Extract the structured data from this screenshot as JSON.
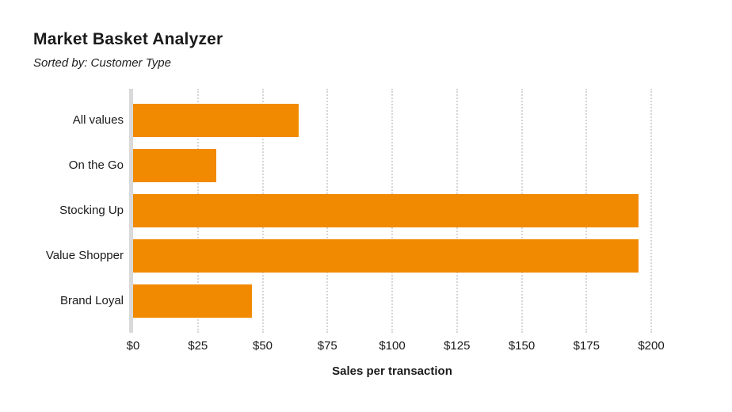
{
  "header": {
    "title": "Market Basket Analyzer",
    "subtitle": "Sorted by: Customer Type"
  },
  "chart_data": {
    "type": "bar",
    "orientation": "horizontal",
    "title": "Market Basket Analyzer",
    "subtitle": "Sorted by: Customer Type",
    "categories": [
      "All values",
      "On the Go",
      "Stocking Up",
      "Value Shopper",
      "Brand Loyal"
    ],
    "values": [
      64,
      32,
      195,
      195,
      46
    ],
    "xlabel": "Sales per transaction",
    "ylabel": "",
    "xlim": [
      0,
      200
    ],
    "x_tick_values": [
      0,
      25,
      50,
      75,
      100,
      125,
      150,
      175,
      200
    ],
    "x_tick_labels": [
      "$0",
      "$25",
      "$50",
      "$75",
      "$100",
      "$125",
      "$150",
      "$175",
      "$200"
    ],
    "bar_color": "#F18A00",
    "axis_line_color": "#D9D9D9",
    "gridline_color": "#D6D6D6",
    "grid": true,
    "grid_style": "dotted",
    "legend": "none"
  }
}
